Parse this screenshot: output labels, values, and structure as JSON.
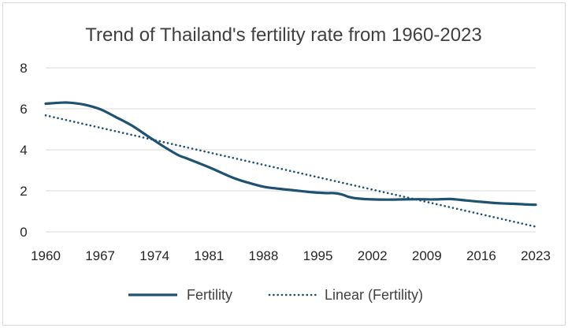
{
  "chart_data": {
    "type": "line",
    "title": "Trend of Thailand's fertility rate from 1960-2023",
    "xlabel": "",
    "ylabel": "",
    "ylim": [
      0,
      8
    ],
    "yticks": [
      0,
      2,
      4,
      6,
      8
    ],
    "xticks": [
      "1960",
      "1967",
      "1974",
      "1981",
      "1988",
      "1995",
      "2002",
      "2009",
      "2016",
      "2023"
    ],
    "grid": "horizontal",
    "legend_position": "bottom",
    "series": [
      {
        "name": "Fertility",
        "color": "#1f5271",
        "style": "solid",
        "x": [
          1960,
          1962,
          1963,
          1965,
          1967,
          1969,
          1971,
          1973,
          1975,
          1977,
          1978,
          1981,
          1984,
          1986,
          1988,
          1990,
          1992,
          1994,
          1996,
          1997,
          1998,
          1999,
          2000,
          2002,
          2004,
          2006,
          2008,
          2010,
          2012,
          2014,
          2016,
          2018,
          2020,
          2021,
          2022,
          2023
        ],
        "values": [
          6.25,
          6.3,
          6.3,
          6.2,
          5.98,
          5.6,
          5.2,
          4.7,
          4.2,
          3.75,
          3.6,
          3.15,
          2.65,
          2.4,
          2.2,
          2.1,
          2.02,
          1.94,
          1.89,
          1.89,
          1.83,
          1.7,
          1.63,
          1.58,
          1.57,
          1.58,
          1.59,
          1.58,
          1.6,
          1.53,
          1.46,
          1.4,
          1.37,
          1.35,
          1.33,
          1.32
        ]
      },
      {
        "name": "Linear (Fertility)",
        "color": "#1f5271",
        "style": "dotted",
        "x": [
          1960,
          2023
        ],
        "values": [
          5.68,
          0.25
        ]
      }
    ]
  }
}
